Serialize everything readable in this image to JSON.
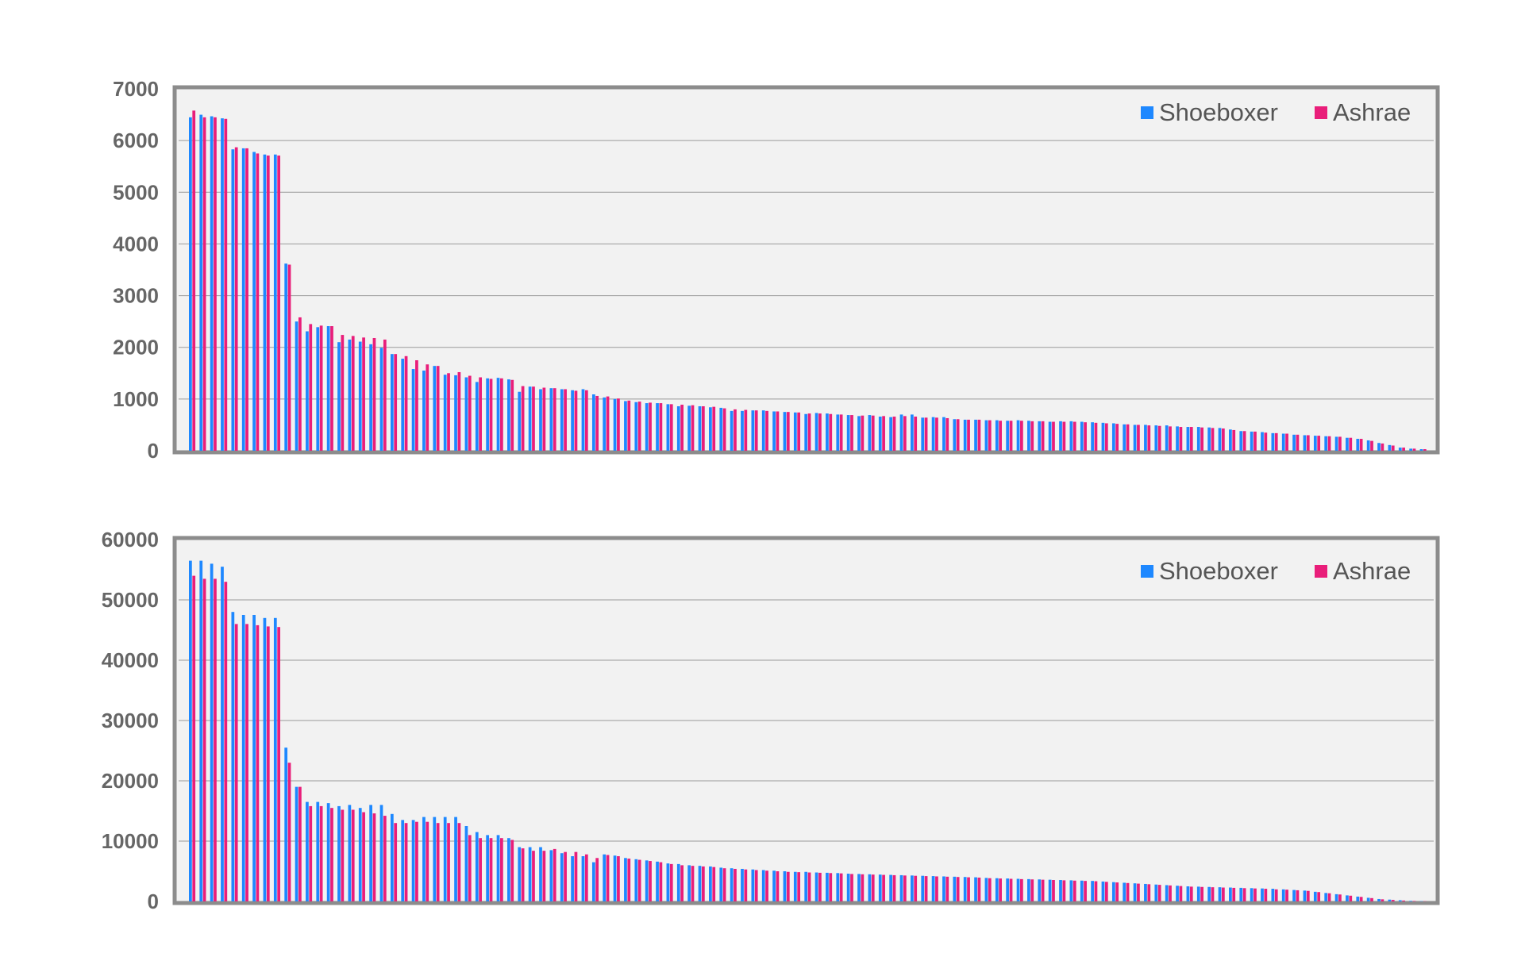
{
  "chart_data": [
    {
      "type": "bar",
      "title": "",
      "xlabel": "",
      "ylabel": "",
      "ylim": [
        0,
        7000
      ],
      "yticks": [
        "0",
        "1000",
        "2000",
        "3000",
        "4000",
        "5000",
        "6000",
        "7000"
      ],
      "grid": true,
      "legend_position": "top-right",
      "series": [
        {
          "name": "Shoeboxer",
          "color": "#1e88ff",
          "values": [
            6450,
            6500,
            6470,
            6430,
            5830,
            5850,
            5780,
            5730,
            5730,
            3620,
            2500,
            2310,
            2390,
            2410,
            2100,
            2150,
            2110,
            2060,
            1990,
            1870,
            1780,
            1580,
            1550,
            1640,
            1470,
            1460,
            1420,
            1330,
            1400,
            1410,
            1380,
            1140,
            1240,
            1190,
            1210,
            1190,
            1170,
            1190,
            1090,
            1030,
            1000,
            960,
            940,
            920,
            920,
            900,
            860,
            870,
            860,
            840,
            830,
            770,
            770,
            780,
            780,
            760,
            750,
            740,
            710,
            730,
            720,
            700,
            690,
            670,
            690,
            660,
            650,
            700,
            700,
            640,
            650,
            650,
            610,
            600,
            600,
            590,
            590,
            580,
            590,
            580,
            570,
            560,
            570,
            570,
            560,
            550,
            540,
            530,
            510,
            500,
            500,
            490,
            490,
            470,
            460,
            460,
            450,
            440,
            410,
            380,
            370,
            360,
            340,
            330,
            310,
            300,
            290,
            280,
            270,
            250,
            230,
            200,
            150,
            110,
            60,
            40,
            30
          ]
        },
        {
          "name": "Ashrae",
          "color": "#e91e7a",
          "values": [
            6580,
            6450,
            6450,
            6420,
            5870,
            5850,
            5750,
            5710,
            5710,
            3600,
            2580,
            2450,
            2420,
            2410,
            2240,
            2220,
            2190,
            2180,
            2150,
            1870,
            1830,
            1750,
            1670,
            1640,
            1500,
            1520,
            1450,
            1420,
            1390,
            1400,
            1370,
            1250,
            1240,
            1220,
            1210,
            1190,
            1160,
            1170,
            1060,
            1050,
            1010,
            970,
            950,
            930,
            920,
            900,
            890,
            880,
            860,
            850,
            820,
            800,
            790,
            780,
            770,
            760,
            750,
            740,
            720,
            720,
            710,
            700,
            690,
            680,
            680,
            670,
            660,
            670,
            660,
            640,
            640,
            630,
            610,
            600,
            600,
            590,
            580,
            580,
            580,
            570,
            570,
            560,
            560,
            560,
            550,
            540,
            530,
            520,
            510,
            500,
            490,
            480,
            470,
            460,
            460,
            450,
            440,
            430,
            400,
            380,
            370,
            350,
            340,
            330,
            310,
            300,
            290,
            280,
            270,
            250,
            230,
            190,
            140,
            100,
            60,
            40,
            30
          ]
        }
      ]
    },
    {
      "type": "bar",
      "title": "",
      "xlabel": "",
      "ylabel": "",
      "ylim": [
        0,
        60000
      ],
      "yticks": [
        "0",
        "10000",
        "20000",
        "30000",
        "40000",
        "50000",
        "60000"
      ],
      "grid": true,
      "legend_position": "top-right",
      "series": [
        {
          "name": "Shoeboxer",
          "color": "#1e88ff",
          "values": [
            56500,
            56500,
            56000,
            55500,
            48000,
            47500,
            47500,
            47000,
            47000,
            25500,
            19000,
            16500,
            16500,
            16300,
            15800,
            16000,
            15500,
            16000,
            16000,
            14500,
            13500,
            13500,
            14000,
            14000,
            14000,
            14000,
            12500,
            11500,
            11000,
            11000,
            10500,
            9000,
            9000,
            9000,
            8500,
            8000,
            7500,
            7500,
            6500,
            7800,
            7600,
            7200,
            7000,
            6800,
            6600,
            6300,
            6200,
            6000,
            5900,
            5800,
            5600,
            5500,
            5400,
            5300,
            5200,
            5100,
            5000,
            4900,
            4900,
            4800,
            4750,
            4700,
            4600,
            4550,
            4500,
            4450,
            4400,
            4350,
            4300,
            4250,
            4200,
            4150,
            4100,
            4050,
            4000,
            3900,
            3850,
            3800,
            3750,
            3700,
            3650,
            3600,
            3550,
            3500,
            3450,
            3400,
            3300,
            3200,
            3100,
            3000,
            2900,
            2800,
            2700,
            2600,
            2500,
            2450,
            2400,
            2350,
            2300,
            2250,
            2200,
            2150,
            2100,
            2000,
            1900,
            1800,
            1600,
            1400,
            1200,
            1000,
            800,
            600,
            400,
            300,
            200,
            100,
            50
          ]
        },
        {
          "name": "Ashrae",
          "color": "#e91e7a",
          "values": [
            54000,
            53500,
            53500,
            53000,
            46000,
            46000,
            45800,
            45600,
            45500,
            23000,
            19000,
            15800,
            15800,
            15500,
            15200,
            15200,
            14800,
            14600,
            14200,
            13000,
            13000,
            13200,
            13200,
            13000,
            13000,
            13000,
            11000,
            10500,
            10500,
            10500,
            10200,
            8800,
            8400,
            8400,
            8700,
            8200,
            8200,
            7800,
            7200,
            7700,
            7500,
            7100,
            6900,
            6700,
            6500,
            6200,
            6000,
            5900,
            5800,
            5700,
            5500,
            5400,
            5300,
            5200,
            5100,
            5000,
            4900,
            4850,
            4800,
            4750,
            4700,
            4650,
            4550,
            4500,
            4450,
            4400,
            4350,
            4300,
            4250,
            4200,
            4150,
            4100,
            4050,
            4000,
            3950,
            3850,
            3800,
            3750,
            3700,
            3650,
            3600,
            3550,
            3500,
            3450,
            3400,
            3350,
            3250,
            3150,
            3050,
            2950,
            2850,
            2750,
            2650,
            2550,
            2450,
            2400,
            2350,
            2300,
            2250,
            2200,
            2150,
            2100,
            2000,
            1950,
            1850,
            1750,
            1550,
            1350,
            1150,
            950,
            750,
            550,
            350,
            250,
            150,
            80,
            40
          ]
        }
      ]
    }
  ]
}
